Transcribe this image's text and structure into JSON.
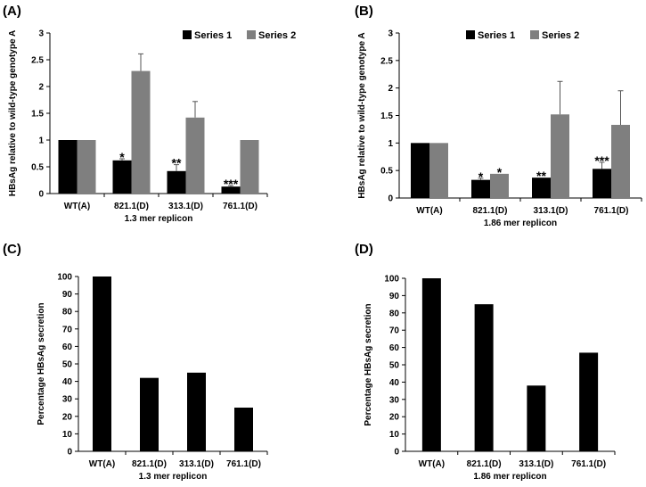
{
  "colors": {
    "series1": "#000000",
    "series2": "#7f7f7f",
    "axis": "#000000",
    "error": "#555555"
  },
  "chart_data": [
    {
      "panel": "(A)",
      "type": "bar",
      "categories": [
        "WT(A)",
        "821.1(D)",
        "313.1(D)",
        "761.1(D)"
      ],
      "series": [
        {
          "name": "Series 1",
          "values": [
            1.0,
            0.62,
            0.42,
            0.13
          ],
          "errors": [
            0.0,
            0.03,
            0.12,
            0.02
          ]
        },
        {
          "name": "Series 2",
          "values": [
            1.0,
            2.29,
            1.42,
            1.0
          ],
          "errors": [
            0.0,
            0.32,
            0.3,
            0.0
          ]
        }
      ],
      "annotations": [
        "*",
        "**",
        "***"
      ],
      "xlabel": "1.3 mer replicon",
      "ylabel": "HBsAg relative to wild-type genotype A",
      "ylim": [
        0,
        3
      ],
      "yticks": [
        "0",
        "0.5",
        "1",
        "1.5",
        "2",
        "2.5",
        "3"
      ],
      "legend": "top-right"
    },
    {
      "panel": "(B)",
      "type": "bar",
      "categories": [
        "WT(A)",
        "821.1(D)",
        "313.1(D)",
        "761.1(D)"
      ],
      "series": [
        {
          "name": "Series 1",
          "values": [
            1.0,
            0.33,
            0.37,
            0.53
          ],
          "errors": [
            0.0,
            0.03,
            0.0,
            0.12
          ]
        },
        {
          "name": "Series 2",
          "values": [
            1.0,
            0.44,
            1.52,
            1.33
          ],
          "errors": [
            0.0,
            0.0,
            0.6,
            0.62
          ]
        }
      ],
      "annotations": [
        "*",
        "*",
        "**",
        "***"
      ],
      "xlabel": "1.86 mer replicon",
      "ylabel": "HBsAg relative to wild-type genotype A",
      "ylim": [
        0,
        3
      ],
      "yticks": [
        "0",
        "0.5",
        "1",
        "1.5",
        "2",
        "2.5",
        "3"
      ],
      "legend": "top-right"
    },
    {
      "panel": "(C)",
      "type": "bar",
      "categories": [
        "WT(A)",
        "821.1(D)",
        "313.1(D)",
        "761.1(D)"
      ],
      "values": [
        100,
        42,
        45,
        25
      ],
      "xlabel": "1.3 mer replicon",
      "ylabel": "Percentage HBsAg secretion",
      "ylim": [
        0,
        100
      ],
      "yticks": [
        "0",
        "10",
        "20",
        "30",
        "40",
        "50",
        "60",
        "70",
        "80",
        "90",
        "100"
      ]
    },
    {
      "panel": "(D)",
      "type": "bar",
      "categories": [
        "WT(A)",
        "821.1(D)",
        "313.1(D)",
        "761.1(D)"
      ],
      "values": [
        100,
        85,
        38,
        57
      ],
      "xlabel": "1.86 mer replicon",
      "ylabel": "Percentage HBsAg secretion",
      "ylim": [
        0,
        100
      ],
      "yticks": [
        "0",
        "10",
        "20",
        "30",
        "40",
        "50",
        "60",
        "70",
        "80",
        "90",
        "100"
      ]
    }
  ]
}
